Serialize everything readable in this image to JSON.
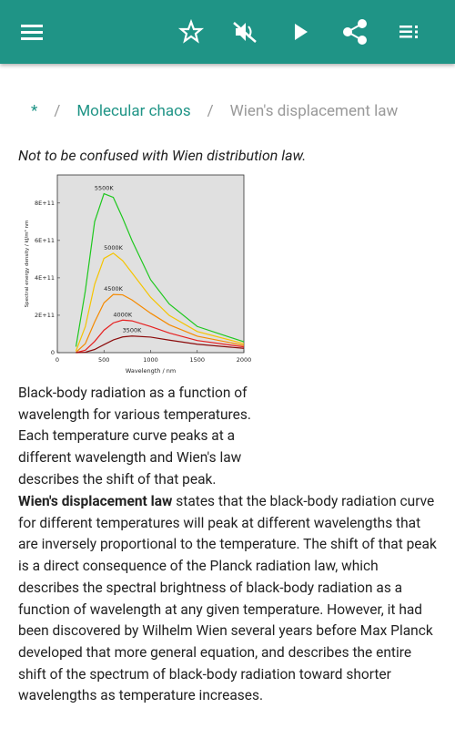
{
  "breadcrumb": {
    "items": [
      "*",
      "Molecular chaos",
      "Wien's displacement law"
    ],
    "separator": "/"
  },
  "note": "Not to be confused with Wien distribution law.",
  "figure": {
    "chart_data": {
      "type": "line",
      "x_label": "Wavelength / nm",
      "y_label": "Spectral energy density / kJ/m³ nm",
      "x": [
        200,
        300,
        400,
        500,
        600,
        700,
        800,
        1000,
        1200,
        1500,
        2000
      ],
      "xlim": [
        0,
        2000
      ],
      "xticks": [
        0,
        500,
        1000,
        1500,
        2000
      ],
      "ylim": [
        0,
        950000000000.0
      ],
      "yticks": [
        0,
        {
          "value": 200000000000.0,
          "label": "2E+11"
        },
        {
          "value": 400000000000.0,
          "label": "4E+11"
        },
        {
          "value": 600000000000.0,
          "label": "6E+11"
        },
        {
          "value": 800000000000.0,
          "label": "8E+11"
        }
      ],
      "background": "#e0e0e0",
      "series": [
        {
          "name": "5500K",
          "color": "#1ec81e",
          "values": [
            32000000000.0,
            330000000000.0,
            700000000000.0,
            850000000000.0,
            830000000000.0,
            720000000000.0,
            600000000000.0,
            390000000000.0,
            260000000000.0,
            140000000000.0,
            58000000000.0
          ]
        },
        {
          "name": "5000K",
          "color": "#f5c400",
          "values": [
            9000000000.0,
            139000000000.0,
            365000000000.0,
            504000000000.0,
            532000000000.0,
            492000000000.0,
            427000000000.0,
            296000000000.0,
            199000000000.0,
            113000000000.0,
            48000000000.0
          ]
        },
        {
          "name": "4500K",
          "color": "#f58a00",
          "values": [
            2000000000.0,
            48000000000.0,
            164000000000.0,
            266000000000.0,
            311000000000.0,
            309000000000.0,
            282000000000.0,
            211000000000.0,
            149000000000.0,
            88000000000.0,
            39000000000.0
          ]
        },
        {
          "name": "4000K",
          "color": "#e62020",
          "values": [
            0,
            13000000000.0,
            60000000000.0,
            120000000000.0,
            159000000000.0,
            174000000000.0,
            170000000000.0,
            140000000000.0,
            105000000000.0,
            65000000000.0,
            31000000000.0
          ]
        },
        {
          "name": "3500K",
          "color": "#8b0a0a",
          "values": [
            0,
            2000000000.0,
            17000000000.0,
            43000000000.0,
            68000000000.0,
            84000000000.0,
            89000000000.0,
            83000000000.0,
            67000000000.0,
            45000000000.0,
            23000000000.0
          ]
        }
      ]
    },
    "caption": "Black-body radiation as a function of wavelength for various temperatures. Each temperature curve peaks at a different wavelength and Wien's law describes the shift of that peak."
  },
  "paragraph": {
    "bold": "Wien's displacement law",
    "text": " states that the black-body radiation curve for different temperatures will peak at different wavelengths that are inversely proportional to the temperature. The shift of that peak is a direct consequence of the Planck radiation law, which describes the spectral brightness of black-body radiation as a function of wavelength at any given temperature. However, it had been discovered by Wilhelm Wien several years before Max Planck developed that more general equation, and describes the entire shift of the spectrum of black-body radiation toward shorter wavelengths as temperature increases."
  }
}
